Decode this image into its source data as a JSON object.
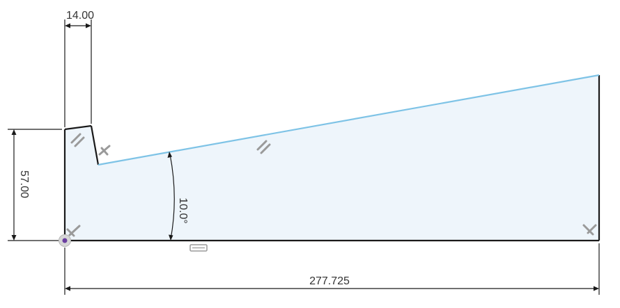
{
  "colors": {
    "canvas": "#ffffff",
    "profile_fill": "#eef5fb",
    "profile_edge": "#1a1a1a",
    "selected_edge": "#7ec3e6",
    "dimension": "#1a1a1a",
    "constraint_glyph": "#9a9a9a",
    "origin_point": "#6b3fa0"
  },
  "dimensions": {
    "top_width": "14.00",
    "left_height": "57.00",
    "angle": "10.0°",
    "overall_length": "277.725"
  },
  "constraints": [
    "parallel",
    "perpendicular",
    "fix"
  ]
}
